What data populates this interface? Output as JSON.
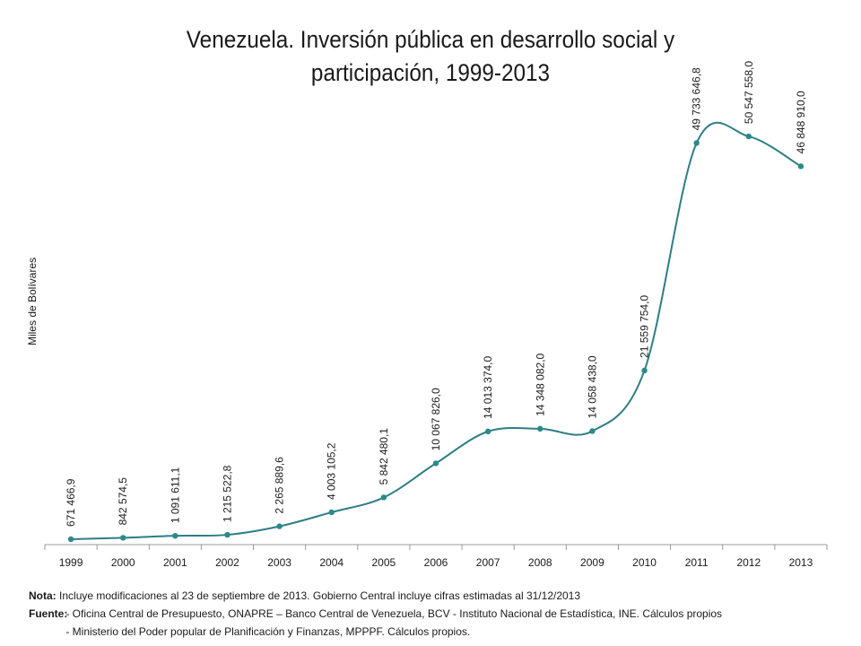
{
  "chart_data": {
    "type": "line",
    "title": "Venezuela. Inversión pública en desarrollo social y participación, 1999-2013",
    "ylabel": "Miles de Bolívares",
    "xlabel": "",
    "categories": [
      "1999",
      "2000",
      "2001",
      "2002",
      "2003",
      "2004",
      "2005",
      "2006",
      "2007",
      "2008",
      "2009",
      "2010",
      "2011",
      "2012",
      "2013"
    ],
    "values": [
      671466.9,
      842574.5,
      1091611.1,
      1215522.8,
      2265889.6,
      4003105.2,
      5842480.1,
      10067826.0,
      14013374.0,
      14348082.0,
      14058438.0,
      21559754.0,
      49733646.8,
      50547558.0,
      46848910.0
    ],
    "data_labels": [
      "671 466,9",
      "842 574,5",
      "1 091 611,1",
      "1 215 522,8",
      "2 265 889,6",
      "4 003 105,2",
      "5 842 480,1",
      "10 067 826,0",
      "14 013 374,0",
      "14 348 082,0",
      "14 058 438,0",
      "21 559 754,0",
      "49 733 646,8",
      "50 547 558,0",
      "46 848 910,0"
    ],
    "ylim": [
      0,
      60000000
    ],
    "grid": false,
    "smooth": true,
    "line_color": "#2e7d86",
    "marker_color": "#2a8a8a"
  },
  "notes": {
    "nota_key": "Nota:",
    "nota_text": "Incluye modificaciones al 23 de septiembre de 2013. Gobierno Central incluye cifras estimadas al 31/12/2013",
    "fuente_key": "Fuente:",
    "fuente_line1": "- Oficina Central de Presupuesto, ONAPRE – Banco Central de Venezuela, BCV  - Instituto Nacional de Estadística, INE. Cálculos propios",
    "fuente_line2": "- Ministerio del Poder popular de Planificación y Finanzas, MPPPF. Cálculos propios."
  }
}
